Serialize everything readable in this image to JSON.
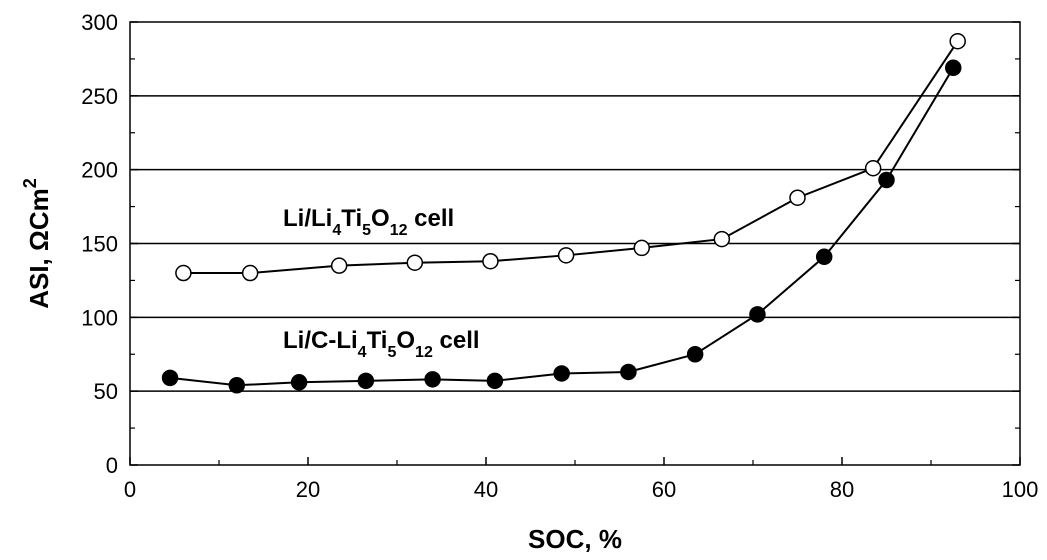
{
  "chart_data": {
    "type": "scatter",
    "xlabel": "SOC, %",
    "ylabel_prefix": "ASI, ",
    "ylabel_unit_base": "ΩCm",
    "ylabel_unit_exp": "2",
    "xlim": [
      0,
      100
    ],
    "ylim": [
      0,
      300
    ],
    "xticks": [
      0,
      20,
      40,
      60,
      80,
      100
    ],
    "yticks": [
      0,
      50,
      100,
      150,
      200,
      250,
      300
    ],
    "xtick_labels": [
      "0",
      "20",
      "40",
      "60",
      "80",
      "100"
    ],
    "ytick_labels": [
      "0",
      "50",
      "100",
      "150",
      "200",
      "250",
      "300"
    ],
    "horizontal_gridlines": [
      50,
      100,
      150,
      200,
      250
    ],
    "series": [
      {
        "marker": "open-circle",
        "x": [
          6,
          13.5,
          23.5,
          32,
          40.5,
          49,
          57.5,
          66.5,
          75,
          83.5,
          93
        ],
        "y": [
          130,
          130,
          135,
          137,
          138,
          142,
          147,
          153,
          181,
          201,
          287
        ]
      },
      {
        "marker": "filled-circle",
        "x": [
          4.5,
          12,
          19,
          26.5,
          34,
          41,
          48.5,
          56,
          63.5,
          70.5,
          78,
          85,
          92.5
        ],
        "y": [
          59,
          54,
          56,
          57,
          58,
          57,
          62,
          63,
          75,
          102,
          141,
          193,
          269
        ]
      }
    ],
    "annotations": [
      {
        "parts": [
          {
            "t": "Li/Li",
            "sub": false
          },
          {
            "t": "4",
            "sub": true
          },
          {
            "t": "Ti",
            "sub": false
          },
          {
            "t": "5",
            "sub": true
          },
          {
            "t": "O",
            "sub": false
          },
          {
            "t": "12",
            "sub": true
          },
          {
            "t": " cell",
            "sub": false
          }
        ]
      },
      {
        "parts": [
          {
            "t": "Li/C-Li",
            "sub": false
          },
          {
            "t": "4",
            "sub": true
          },
          {
            "t": "Ti",
            "sub": false
          },
          {
            "t": "5",
            "sub": true
          },
          {
            "t": "O",
            "sub": false
          },
          {
            "t": "12",
            "sub": true
          },
          {
            "t": " cell",
            "sub": false
          }
        ]
      }
    ]
  }
}
